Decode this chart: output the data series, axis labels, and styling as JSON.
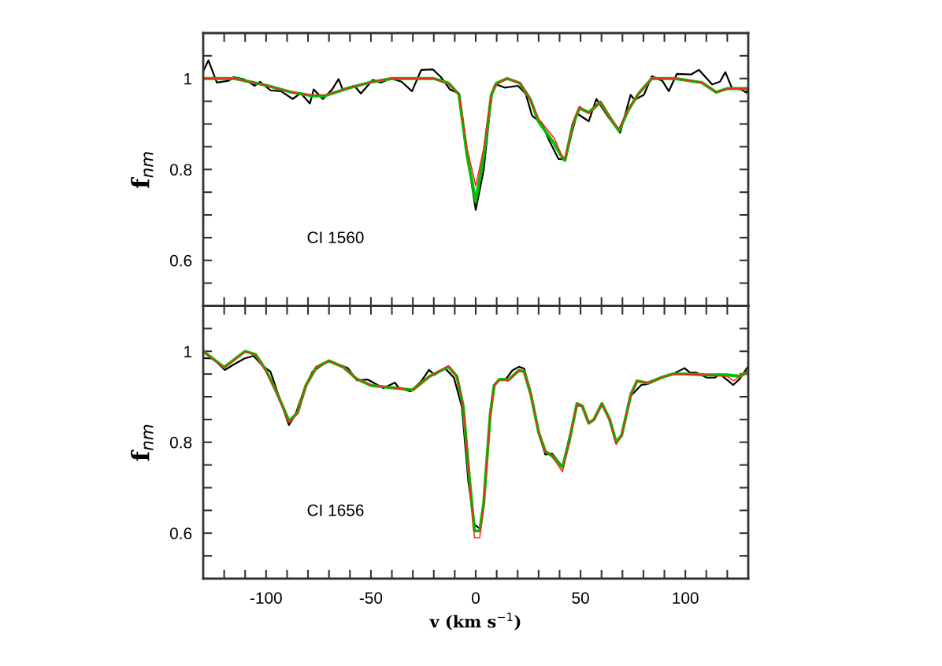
{
  "chart_data": [
    {
      "type": "line",
      "ylabel": "f$_{nm}$",
      "annotations": [
        "CI 1560"
      ],
      "xlim": [
        -130,
        130
      ],
      "ylim": [
        0.5,
        1.1
      ],
      "xticks": [
        {
          "value": -120,
          "label": null
        },
        {
          "value": -110,
          "label": null
        },
        -100,
        {
          "value": -90,
          "label": null
        },
        {
          "value": -80,
          "label": null
        },
        {
          "value": -70,
          "label": null
        },
        {
          "value": -60,
          "label": null
        },
        -50,
        {
          "value": -40,
          "label": null
        },
        {
          "value": -30,
          "label": null
        },
        {
          "value": -20,
          "label": null
        },
        {
          "value": -10,
          "label": null
        },
        0,
        {
          "value": 10,
          "label": null
        },
        {
          "value": 20,
          "label": null
        },
        {
          "value": 30,
          "label": null
        },
        {
          "value": 40,
          "label": null
        },
        50,
        {
          "value": 60,
          "label": null
        },
        {
          "value": 70,
          "label": null
        },
        {
          "value": 80,
          "label": null
        },
        {
          "value": 90,
          "label": null
        },
        100,
        {
          "value": 110,
          "label": null
        },
        {
          "value": 120,
          "label": null
        }
      ],
      "yticks": [
        {
          "value": 0.55,
          "label": null
        },
        0.6,
        {
          "value": 0.65,
          "label": null
        },
        {
          "value": 0.7,
          "label": null
        },
        {
          "value": 0.75,
          "label": null
        },
        0.8,
        {
          "value": 0.85,
          "label": null
        },
        {
          "value": 0.9,
          "label": null
        },
        {
          "value": 0.95,
          "label": null
        },
        1,
        {
          "value": 1.05,
          "label": null
        }
      ],
      "tick_labels": "y",
      "grid": false,
      "marker": "none",
      "line_style": "solid",
      "series": [
        {
          "color": "#000000",
          "x": [
            -130,
            -127.5,
            -123.5,
            -117.9,
            -115.4,
            -110.4,
            -105.4,
            -102.9,
            -97.9,
            -92.9,
            -87.3,
            -83.5,
            -79.1,
            -77.3,
            -72.9,
            -68.5,
            -65.4,
            -63.5,
            -57.9,
            -54.8,
            -49.1,
            -45.4,
            -40.4,
            -35.4,
            -30.4,
            -26,
            -20.4,
            -16.6,
            -12.3,
            -7.9,
            -4.1,
            0,
            3.8,
            7.5,
            9.4,
            13.8,
            20.1,
            23.8,
            26.9,
            31.3,
            35.1,
            39.5,
            42.6,
            48.3,
            53.9,
            57.6,
            63.3,
            68.9,
            73.9,
            75.8,
            80.2,
            84,
            89,
            92.1,
            95.9,
            102.8,
            106.5,
            112.8,
            116.5,
            119.1,
            122.2,
            126.6,
            129.1,
            130
          ],
          "values": [
            1.016,
            1.04,
            0.991,
            0.995,
            1.003,
            0.998,
            0.984,
            0.993,
            0.974,
            0.972,
            0.955,
            0.968,
            0.945,
            0.976,
            0.955,
            0.976,
            0.999,
            0.976,
            0.984,
            0.967,
            0.997,
            0.991,
            1.0,
            0.993,
            0.972,
            1.019,
            1.02,
            1.003,
            0.976,
            0.967,
            0.834,
            0.711,
            0.799,
            0.962,
            0.988,
            0.98,
            0.984,
            0.967,
            0.918,
            0.903,
            0.863,
            0.823,
            0.822,
            0.923,
            0.906,
            0.955,
            0.915,
            0.881,
            0.964,
            0.953,
            0.964,
            1.005,
            0.995,
            0.972,
            1.01,
            1.009,
            1.019,
            0.987,
            0.993,
            1.014,
            0.979,
            0.976,
            0.969,
            0.978
          ]
        },
        {
          "color": "#00c000",
          "x": [
            -130,
            -115,
            -100,
            -88,
            -78,
            -72,
            -60,
            -50,
            -40,
            -20,
            -13,
            -8,
            -4.1,
            0,
            3.8,
            7.5,
            10,
            15,
            21,
            26,
            30,
            37,
            40.8,
            42.6,
            46.4,
            49.5,
            53.9,
            59.5,
            63.9,
            68.3,
            72.7,
            77.7,
            84,
            95,
            107.8,
            114.7,
            120.3,
            130
          ],
          "values": [
            1.0,
            1.0,
            0.985,
            0.97,
            0.962,
            0.962,
            0.98,
            0.992,
            1.0,
            1.0,
            0.99,
            0.965,
            0.83,
            0.73,
            0.83,
            0.965,
            0.99,
            1.0,
            0.99,
            0.955,
            0.905,
            0.86,
            0.83,
            0.82,
            0.9,
            0.935,
            0.925,
            0.948,
            0.915,
            0.885,
            0.93,
            0.967,
            1.0,
            1.0,
            0.991,
            0.97,
            0.978,
            0.978
          ]
        },
        {
          "color": "#ff2020",
          "x": [
            -130,
            -115,
            -100,
            -88,
            -78,
            -72,
            -60,
            -50,
            -40,
            -20,
            -11.7,
            -7.9,
            -4.1,
            0,
            3.8,
            7.5,
            8.8,
            15.1,
            21.4,
            25.8,
            30.1,
            37.6,
            40.8,
            42.6,
            46.4,
            49.5,
            53.9,
            59.5,
            63.9,
            68.3,
            72.7,
            77.7,
            84,
            95.2,
            107.8,
            114.7,
            120.3,
            130
          ],
          "values": [
            1.0,
            1.0,
            0.985,
            0.97,
            0.963,
            0.963,
            0.98,
            0.992,
            1.0,
            1.0,
            0.984,
            0.964,
            0.846,
            0.764,
            0.846,
            0.967,
            0.984,
            1.0,
            0.99,
            0.955,
            0.911,
            0.868,
            0.833,
            0.822,
            0.903,
            0.939,
            0.923,
            0.95,
            0.915,
            0.889,
            0.932,
            0.967,
            1.0,
            1.0,
            0.991,
            0.97,
            0.978,
            0.978
          ]
        }
      ]
    },
    {
      "type": "line",
      "xlabel": "v (km s$^{−1}$)",
      "ylabel": "f$_{nm}$",
      "annotations": [
        "CI 1656"
      ],
      "xlim": [
        -130,
        130
      ],
      "ylim": [
        0.5,
        1.1
      ],
      "xticks": [
        {
          "value": -120,
          "label": null
        },
        {
          "value": -110,
          "label": null
        },
        -100,
        {
          "value": -90,
          "label": null
        },
        {
          "value": -80,
          "label": null
        },
        {
          "value": -70,
          "label": null
        },
        {
          "value": -60,
          "label": null
        },
        -50,
        {
          "value": -40,
          "label": null
        },
        {
          "value": -30,
          "label": null
        },
        {
          "value": -20,
          "label": null
        },
        {
          "value": -10,
          "label": null
        },
        0,
        {
          "value": 10,
          "label": null
        },
        {
          "value": 20,
          "label": null
        },
        {
          "value": 30,
          "label": null
        },
        {
          "value": 40,
          "label": null
        },
        50,
        {
          "value": 60,
          "label": null
        },
        {
          "value": 70,
          "label": null
        },
        {
          "value": 80,
          "label": null
        },
        {
          "value": 90,
          "label": null
        },
        100,
        {
          "value": 110,
          "label": null
        },
        {
          "value": 120,
          "label": null
        }
      ],
      "yticks": [
        {
          "value": 0.55,
          "label": null
        },
        0.6,
        {
          "value": 0.65,
          "label": null
        },
        {
          "value": 0.7,
          "label": null
        },
        {
          "value": 0.75,
          "label": null
        },
        0.8,
        {
          "value": 0.85,
          "label": null
        },
        {
          "value": 0.9,
          "label": null
        },
        {
          "value": 0.95,
          "label": null
        },
        1,
        {
          "value": 1.05,
          "label": null
        }
      ],
      "grid": false,
      "marker": "none",
      "line_style": "solid",
      "series": [
        {
          "color": "#000000",
          "x": [
            -130,
            -125.3,
            -119.7,
            -115.4,
            -110.4,
            -106,
            -101.6,
            -97.9,
            -93.5,
            -89.1,
            -86,
            -81.6,
            -77.9,
            -70.4,
            -65.4,
            -61,
            -56.6,
            -51.6,
            -44.1,
            -38.5,
            -36.6,
            -31,
            -26,
            -22.3,
            -19.7,
            -14.7,
            -10.4,
            -6.6,
            -3.5,
            -0.6,
            1.9,
            3.8,
            6.9,
            8.8,
            11.3,
            14.4,
            17.5,
            20.6,
            23.1,
            26.3,
            30.1,
            33.2,
            36.4,
            41.4,
            44.5,
            48.3,
            50.8,
            53.9,
            56.4,
            60.2,
            63.9,
            67,
            69.6,
            74,
            79,
            82.1,
            89,
            94,
            99.6,
            102.2,
            105.3,
            110.3,
            114,
            116.5,
            119.7,
            122.8,
            125.9,
            129.7
          ],
          "values": [
            0.985,
            0.984,
            0.959,
            0.971,
            0.984,
            0.99,
            0.968,
            0.955,
            0.896,
            0.838,
            0.861,
            0.919,
            0.955,
            0.979,
            0.971,
            0.963,
            0.936,
            0.938,
            0.919,
            0.931,
            0.919,
            0.912,
            0.934,
            0.959,
            0.948,
            0.963,
            0.942,
            0.878,
            0.713,
            0.619,
            0.61,
            0.666,
            0.86,
            0.925,
            0.938,
            0.939,
            0.958,
            0.966,
            0.962,
            0.908,
            0.819,
            0.773,
            0.775,
            0.746,
            0.807,
            0.881,
            0.879,
            0.842,
            0.849,
            0.885,
            0.849,
            0.799,
            0.814,
            0.902,
            0.926,
            0.928,
            0.942,
            0.95,
            0.963,
            0.953,
            0.953,
            0.942,
            0.942,
            0.95,
            0.938,
            0.926,
            0.939,
            0.965
          ]
        },
        {
          "color": "#00c000",
          "x": [
            -130,
            -120,
            -110,
            -105,
            -100,
            -95,
            -89,
            -85,
            -81,
            -76,
            -70,
            -63,
            -57,
            -50,
            -40,
            -30,
            -22,
            -13,
            -9,
            -6,
            -3,
            -0.6,
            1.9,
            3.8,
            6.9,
            8.8,
            11.3,
            15.6,
            20.6,
            23.1,
            26.3,
            30.1,
            33.2,
            36.4,
            41.4,
            44.5,
            48.3,
            50.8,
            53.9,
            56.4,
            60.2,
            63.9,
            67,
            69.6,
            74,
            77,
            82,
            89,
            94,
            100,
            110,
            120,
            126,
            130
          ],
          "values": [
            1.0,
            0.965,
            1.0,
            0.993,
            0.958,
            0.91,
            0.846,
            0.865,
            0.925,
            0.965,
            0.979,
            0.965,
            0.94,
            0.925,
            0.92,
            0.915,
            0.945,
            0.966,
            0.945,
            0.88,
            0.72,
            0.605,
            0.605,
            0.665,
            0.86,
            0.925,
            0.938,
            0.937,
            0.958,
            0.955,
            0.905,
            0.82,
            0.78,
            0.77,
            0.745,
            0.8,
            0.885,
            0.88,
            0.842,
            0.85,
            0.885,
            0.85,
            0.8,
            0.815,
            0.905,
            0.935,
            0.93,
            0.943,
            0.95,
            0.95,
            0.948,
            0.948,
            0.945,
            0.955
          ]
        },
        {
          "color": "#ff2020",
          "x": [
            -130,
            -120,
            -110,
            -105,
            -100,
            -95,
            -89,
            -85,
            -81,
            -76,
            -70,
            -63,
            -57,
            -50,
            -40,
            -30,
            -22,
            -13,
            -9,
            -6,
            -3,
            -0.6,
            1.9,
            3.8,
            6.9,
            8.8,
            11.3,
            15.6,
            20.6,
            23.1,
            26.3,
            30.1,
            33.2,
            36.4,
            41.4,
            44.5,
            48.3,
            50.8,
            53.9,
            56.4,
            60.2,
            63.9,
            67,
            69.6,
            74,
            77,
            82,
            89,
            94,
            100,
            110,
            120,
            123,
            126,
            130
          ],
          "values": [
            1.0,
            0.963,
            1.0,
            0.992,
            0.955,
            0.91,
            0.843,
            0.865,
            0.925,
            0.965,
            0.979,
            0.965,
            0.94,
            0.925,
            0.92,
            0.915,
            0.945,
            0.968,
            0.945,
            0.88,
            0.72,
            0.59,
            0.59,
            0.66,
            0.86,
            0.925,
            0.938,
            0.935,
            0.958,
            0.955,
            0.905,
            0.82,
            0.78,
            0.77,
            0.735,
            0.8,
            0.885,
            0.88,
            0.842,
            0.85,
            0.885,
            0.85,
            0.795,
            0.815,
            0.905,
            0.935,
            0.93,
            0.943,
            0.95,
            0.95,
            0.948,
            0.945,
            0.935,
            0.945,
            0.955
          ]
        }
      ]
    }
  ]
}
